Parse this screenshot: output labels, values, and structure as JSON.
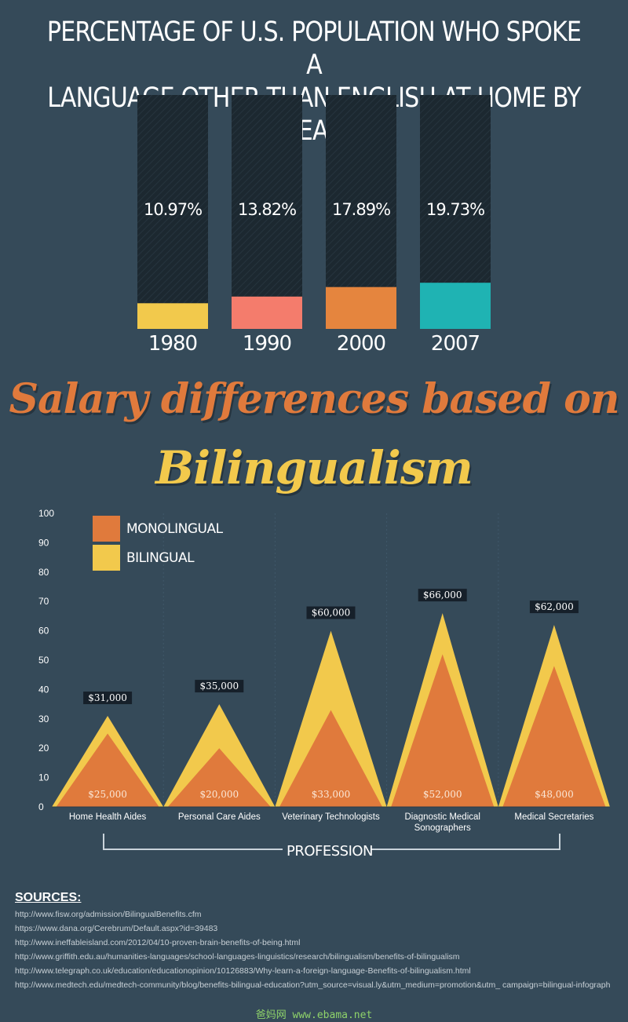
{
  "title": {
    "line1": "PERCENTAGE OF U.S. POPULATION WHO SPOKE A",
    "line2": "LANGUAGE OTHER THAN ENGLISH AT HOME BY YEAR"
  },
  "salary_title": {
    "line1": "Salary differences based on",
    "line2": "Bilingualism"
  },
  "colors": {
    "background": "#354a59",
    "bar_track": "#1c2830",
    "bar_colors": [
      "#f2c94c",
      "#f47c6c",
      "#e5853e",
      "#1fb3b3"
    ],
    "monolingual": "#e07a3c",
    "bilingual": "#f2c94c",
    "label_box": "#16202a"
  },
  "chart_data": [
    {
      "type": "bar",
      "categories": [
        "1980",
        "1990",
        "2000",
        "2007"
      ],
      "values": [
        10.97,
        13.82,
        17.89,
        19.73
      ],
      "value_labels": [
        "10.97%",
        "13.82%",
        "17.89%",
        "19.73%"
      ],
      "ylim": [
        0,
        100
      ]
    },
    {
      "type": "area",
      "categories": [
        "Home Health Aides",
        "Personal Care Aides",
        "Veterinary Technologists",
        "Diagnostic Medical Sonographers",
        "Medical Secretaries"
      ],
      "xlabel": "PROFESSION",
      "ylim": [
        0,
        100
      ],
      "yticks": [
        0,
        10,
        20,
        30,
        40,
        50,
        60,
        70,
        80,
        90,
        100
      ],
      "legend": "top-left",
      "series": [
        {
          "name": "MONOLINGUAL",
          "values": [
            25,
            20,
            33,
            52,
            48
          ],
          "labels": [
            "$25,000",
            "$20,000",
            "$33,000",
            "$52,000",
            "$48,000"
          ]
        },
        {
          "name": "BILINGUAL",
          "values": [
            31,
            35,
            60,
            66,
            62
          ],
          "labels": [
            "$31,000",
            "$35,000",
            "$60,000",
            "$66,000",
            "$62,000"
          ]
        }
      ]
    }
  ],
  "sources": {
    "heading": "SOURCES:",
    "items": [
      "http://www.fisw.org/admission/BilingualBenefits.cfm",
      "https://www.dana.org/Cerebrum/Default.aspx?id=39483",
      "http://www.ineffableisland.com/2012/04/10-proven-brain-benefits-of-being.html",
      "http://www.griffith.edu.au/humanities-languages/school-languages-linguistics/research/bilingualism/benefits-of-bilingualism",
      "http://www.telegraph.co.uk/education/educationopinion/10126883/Why-learn-a-foreign-language-Benefits-of-bilingualism.html",
      "http://www.medtech.edu/medtech-community/blog/benefits-bilingual-education?utm_source=visual.ly&utm_medium=promotion&utm_ campaign=bilingual-infograph"
    ]
  },
  "watermark": "爸妈网 www.ebama.net"
}
